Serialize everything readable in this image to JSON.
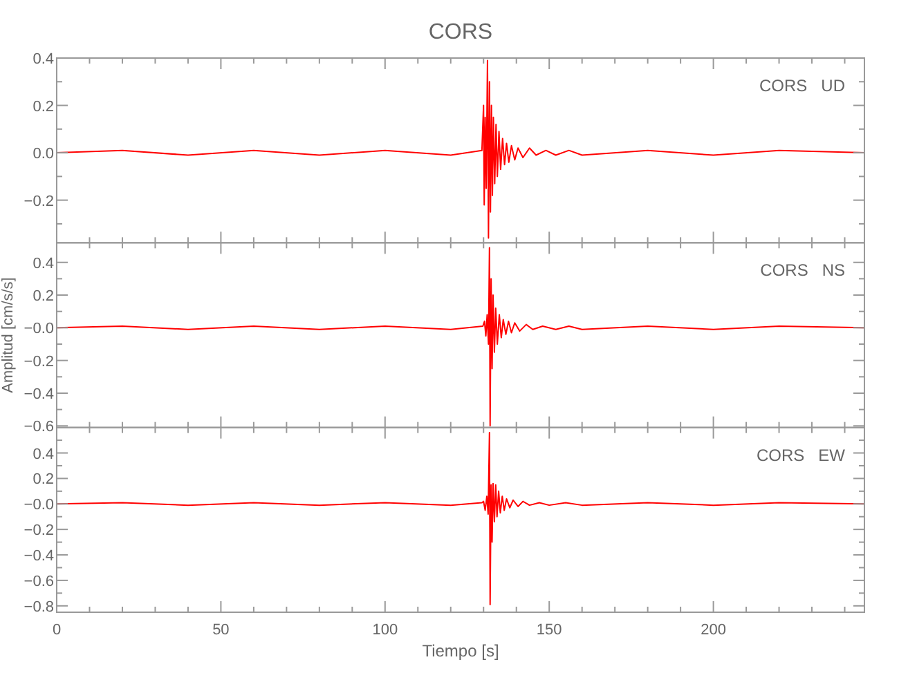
{
  "chart_data": [
    {
      "type": "line",
      "title": "CORS",
      "annotations": [
        "CORS   UD"
      ],
      "grid": false,
      "tick_labels": "y",
      "xlim": [
        0,
        246
      ],
      "ylim": [
        -0.38,
        0.4
      ],
      "xticks": [
        {
          "value": 0,
          "label": null
        },
        {
          "value": 10,
          "label": null
        },
        {
          "value": 20,
          "label": null
        },
        {
          "value": 30,
          "label": null
        },
        {
          "value": 40,
          "label": null
        },
        {
          "value": 50,
          "label": null
        },
        {
          "value": 60,
          "label": null
        },
        {
          "value": 70,
          "label": null
        },
        {
          "value": 80,
          "label": null
        },
        {
          "value": 90,
          "label": null
        },
        {
          "value": 100,
          "label": null
        },
        {
          "value": 110,
          "label": null
        },
        {
          "value": 120,
          "label": null
        },
        {
          "value": 130,
          "label": null
        },
        {
          "value": 140,
          "label": null
        },
        {
          "value": 150,
          "label": null
        },
        {
          "value": 160,
          "label": null
        },
        {
          "value": 170,
          "label": null
        },
        {
          "value": 180,
          "label": null
        },
        {
          "value": 190,
          "label": null
        },
        {
          "value": 200,
          "label": null
        },
        {
          "value": 210,
          "label": null
        },
        {
          "value": 220,
          "label": null
        },
        {
          "value": 230,
          "label": null
        },
        {
          "value": 240,
          "label": null
        }
      ],
      "yticks": [
        {
          "value": 0.4,
          "label": "0.4"
        },
        {
          "value": 0.3,
          "label": null
        },
        {
          "value": 0.2,
          "label": "0.2"
        },
        {
          "value": 0.1,
          "label": null
        },
        {
          "value": 0,
          "label": "0.0"
        },
        {
          "value": -0.1,
          "label": null
        },
        {
          "value": -0.2,
          "label": "−0.2"
        },
        {
          "value": -0.3,
          "label": null
        }
      ],
      "series": [
        {
          "color": "#ff0000",
          "x": [
            0,
            20,
            40,
            60,
            80,
            100,
            120,
            129.5,
            130.0,
            130.2,
            130.5,
            130.8,
            131.2,
            131.5,
            131.8,
            132.1,
            132.4,
            132.7,
            133.0,
            133.4,
            133.8,
            134.2,
            134.7,
            135.2,
            135.8,
            136.4,
            137,
            137.7,
            138.5,
            139.5,
            140.5,
            142,
            144,
            146,
            149,
            152,
            156,
            160,
            180,
            200,
            220,
            246
          ],
          "values": [
            0,
            0.01,
            -0.01,
            0.01,
            -0.01,
            0.01,
            -0.01,
            0.01,
            0.2,
            -0.22,
            0.15,
            -0.15,
            0.39,
            -0.36,
            0.3,
            -0.25,
            0.2,
            -0.18,
            0.15,
            -0.13,
            0.12,
            -0.1,
            0.09,
            -0.07,
            0.06,
            -0.05,
            0.04,
            -0.04,
            0.03,
            -0.03,
            0.02,
            -0.02,
            0.02,
            -0.01,
            0.01,
            -0.01,
            0.01,
            -0.01,
            0.01,
            -0.01,
            0.01,
            0
          ]
        }
      ]
    },
    {
      "type": "line",
      "ylabel": "Amplitud [cm/s/s]",
      "annotations": [
        "CORS   NS"
      ],
      "grid": false,
      "tick_labels": "y",
      "xlim": [
        0,
        246
      ],
      "ylim": [
        -0.61,
        0.52
      ],
      "xticks": [
        {
          "value": 0,
          "label": null
        },
        {
          "value": 10,
          "label": null
        },
        {
          "value": 20,
          "label": null
        },
        {
          "value": 30,
          "label": null
        },
        {
          "value": 40,
          "label": null
        },
        {
          "value": 50,
          "label": null
        },
        {
          "value": 60,
          "label": null
        },
        {
          "value": 70,
          "label": null
        },
        {
          "value": 80,
          "label": null
        },
        {
          "value": 90,
          "label": null
        },
        {
          "value": 100,
          "label": null
        },
        {
          "value": 110,
          "label": null
        },
        {
          "value": 120,
          "label": null
        },
        {
          "value": 130,
          "label": null
        },
        {
          "value": 140,
          "label": null
        },
        {
          "value": 150,
          "label": null
        },
        {
          "value": 160,
          "label": null
        },
        {
          "value": 170,
          "label": null
        },
        {
          "value": 180,
          "label": null
        },
        {
          "value": 190,
          "label": null
        },
        {
          "value": 200,
          "label": null
        },
        {
          "value": 210,
          "label": null
        },
        {
          "value": 220,
          "label": null
        },
        {
          "value": 230,
          "label": null
        },
        {
          "value": 240,
          "label": null
        }
      ],
      "yticks": [
        {
          "value": 0.4,
          "label": "0.4"
        },
        {
          "value": 0.3,
          "label": null
        },
        {
          "value": 0.2,
          "label": "0.2"
        },
        {
          "value": 0.1,
          "label": null
        },
        {
          "value": 0,
          "label": "−0.0"
        },
        {
          "value": -0.1,
          "label": null
        },
        {
          "value": -0.2,
          "label": "−0.2"
        },
        {
          "value": -0.3,
          "label": null
        },
        {
          "value": -0.4,
          "label": "−0.4"
        },
        {
          "value": -0.5,
          "label": null
        },
        {
          "value": -0.6,
          "label": "−0.6"
        }
      ],
      "series": [
        {
          "color": "#ff0000",
          "x": [
            0,
            20,
            40,
            60,
            80,
            100,
            120,
            129.8,
            130.3,
            130.7,
            131.1,
            131.5,
            131.8,
            132.0,
            132.3,
            132.6,
            132.9,
            133.3,
            133.7,
            134.2,
            134.8,
            135.4,
            136,
            136.8,
            137.6,
            138.5,
            139.5,
            141,
            143,
            145,
            148,
            152,
            156,
            160,
            180,
            200,
            220,
            246
          ],
          "values": [
            0,
            0.01,
            -0.01,
            0.01,
            -0.01,
            0.01,
            -0.01,
            0.01,
            0.04,
            -0.05,
            0.08,
            -0.1,
            0.49,
            -0.6,
            0.3,
            -0.25,
            0.2,
            -0.15,
            0.12,
            -0.1,
            0.08,
            -0.06,
            0.05,
            -0.04,
            0.04,
            -0.03,
            0.03,
            -0.02,
            0.02,
            -0.01,
            0.01,
            -0.01,
            0.01,
            -0.01,
            0.01,
            -0.01,
            0.01,
            0
          ]
        }
      ]
    },
    {
      "type": "line",
      "xlabel": "Tiempo [s]",
      "annotations": [
        "CORS   EW"
      ],
      "grid": false,
      "xlim": [
        0,
        246
      ],
      "ylim": [
        -0.85,
        0.6
      ],
      "xticks": [
        {
          "value": 0,
          "label": "0"
        },
        {
          "value": 10,
          "label": null
        },
        {
          "value": 20,
          "label": null
        },
        {
          "value": 30,
          "label": null
        },
        {
          "value": 40,
          "label": null
        },
        {
          "value": 50,
          "label": "50"
        },
        {
          "value": 60,
          "label": null
        },
        {
          "value": 70,
          "label": null
        },
        {
          "value": 80,
          "label": null
        },
        {
          "value": 90,
          "label": null
        },
        {
          "value": 100,
          "label": "100"
        },
        {
          "value": 110,
          "label": null
        },
        {
          "value": 120,
          "label": null
        },
        {
          "value": 130,
          "label": null
        },
        {
          "value": 140,
          "label": null
        },
        {
          "value": 150,
          "label": "150"
        },
        {
          "value": 160,
          "label": null
        },
        {
          "value": 170,
          "label": null
        },
        {
          "value": 180,
          "label": null
        },
        {
          "value": 190,
          "label": null
        },
        {
          "value": 200,
          "label": "200"
        },
        {
          "value": 210,
          "label": null
        },
        {
          "value": 220,
          "label": null
        },
        {
          "value": 230,
          "label": null
        },
        {
          "value": 240,
          "label": null
        }
      ],
      "yticks": [
        {
          "value": 0.5,
          "label": null
        },
        {
          "value": 0.4,
          "label": "0.4"
        },
        {
          "value": 0.3,
          "label": null
        },
        {
          "value": 0.2,
          "label": "0.2"
        },
        {
          "value": 0.1,
          "label": null
        },
        {
          "value": 0,
          "label": "−0.0"
        },
        {
          "value": -0.1,
          "label": null
        },
        {
          "value": -0.2,
          "label": "−0.2"
        },
        {
          "value": -0.3,
          "label": null
        },
        {
          "value": -0.4,
          "label": "−0.4"
        },
        {
          "value": -0.5,
          "label": null
        },
        {
          "value": -0.6,
          "label": "−0.6"
        },
        {
          "value": -0.7,
          "label": null
        },
        {
          "value": -0.8,
          "label": "−0.8"
        }
      ],
      "series": [
        {
          "color": "#ff0000",
          "x": [
            0,
            20,
            40,
            60,
            80,
            100,
            120,
            129.5,
            130,
            130.5,
            131,
            131.4,
            131.8,
            132.0,
            132.3,
            132.6,
            132.9,
            133.3,
            133.7,
            134.1,
            134.6,
            135.1,
            135.7,
            136.3,
            137,
            138,
            139,
            140.5,
            142,
            144,
            147,
            150,
            155,
            160,
            180,
            200,
            220,
            246
          ],
          "values": [
            0,
            0.01,
            -0.01,
            0.01,
            -0.01,
            0.01,
            -0.01,
            0.01,
            0.02,
            -0.05,
            0.06,
            -0.08,
            0.56,
            -0.79,
            0.15,
            -0.3,
            0.16,
            -0.14,
            0.15,
            -0.1,
            0.1,
            -0.07,
            0.06,
            -0.05,
            0.04,
            -0.03,
            0.03,
            -0.02,
            0.02,
            -0.01,
            0.01,
            -0.01,
            0.01,
            -0.01,
            0.01,
            -0.01,
            0.01,
            0
          ]
        }
      ]
    }
  ]
}
